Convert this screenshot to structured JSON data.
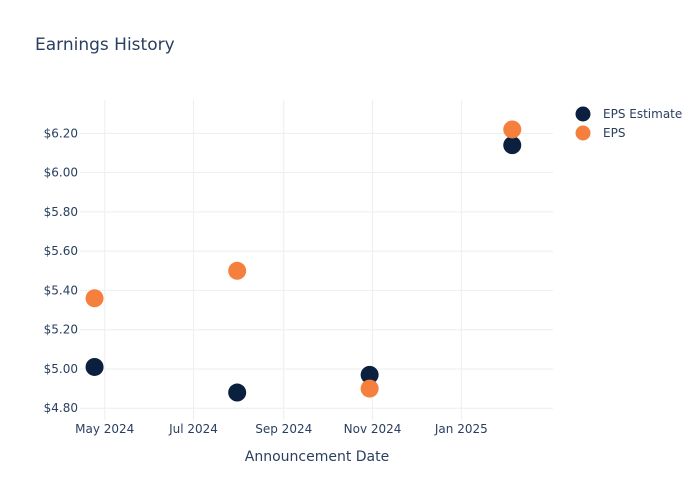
{
  "chart_data": {
    "type": "scatter",
    "title": "Earnings History",
    "xlabel": "Announcement Date",
    "ylabel": "",
    "x_ticks": [
      {
        "date": "2024-05-01",
        "label": "May 2024"
      },
      {
        "date": "2024-07-01",
        "label": "Jul 2024"
      },
      {
        "date": "2024-09-01",
        "label": "Sep 2024"
      },
      {
        "date": "2024-11-01",
        "label": "Nov 2024"
      },
      {
        "date": "2025-01-01",
        "label": "Jan 2025"
      }
    ],
    "y_ticks": [
      {
        "value": 4.8,
        "label": "$4.80"
      },
      {
        "value": 5.0,
        "label": "$5.00"
      },
      {
        "value": 5.2,
        "label": "$5.20"
      },
      {
        "value": 5.4,
        "label": "$5.40"
      },
      {
        "value": 5.6,
        "label": "$5.60"
      },
      {
        "value": 5.8,
        "label": "$5.80"
      },
      {
        "value": 6.0,
        "label": "$6.00"
      },
      {
        "value": 6.2,
        "label": "$6.20"
      }
    ],
    "xlim": [
      "2024-04-14",
      "2025-03-05"
    ],
    "ylim": [
      4.74,
      6.37
    ],
    "grid": true,
    "legend_position": "top-right",
    "series": [
      {
        "name": "EPS Estimate",
        "color": "#0b1f3f",
        "points": [
          {
            "x": "2024-04-24",
            "y": 5.01
          },
          {
            "x": "2024-07-31",
            "y": 4.88
          },
          {
            "x": "2024-10-30",
            "y": 4.97
          },
          {
            "x": "2025-02-05",
            "y": 6.14
          }
        ]
      },
      {
        "name": "EPS",
        "color": "#f5803e",
        "points": [
          {
            "x": "2024-04-24",
            "y": 5.36
          },
          {
            "x": "2024-07-31",
            "y": 5.5
          },
          {
            "x": "2024-10-30",
            "y": 4.9
          },
          {
            "x": "2025-02-05",
            "y": 6.22
          }
        ]
      }
    ]
  }
}
